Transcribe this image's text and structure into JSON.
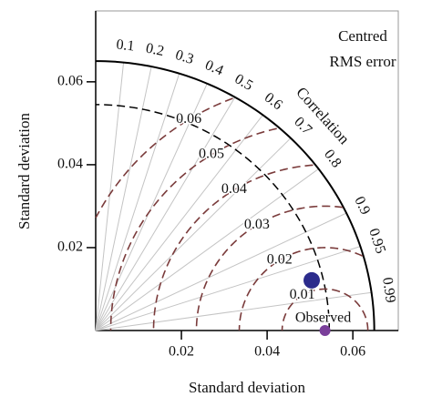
{
  "chart_data": {
    "type": "taylor",
    "xlabel": "Standard deviation",
    "ylabel": "Standard deviation",
    "xlim": [
      0,
      0.0706
    ],
    "ylim": [
      0,
      0.0771
    ],
    "xticks": [
      0.02,
      0.04,
      0.06
    ],
    "yticks": [
      0.02,
      0.04,
      0.06
    ],
    "std_max": 0.065,
    "std_arcs": [
      0.0545
    ],
    "correlations": [
      0.1,
      0.2,
      0.3,
      0.4,
      0.5,
      0.6,
      0.7,
      0.8,
      0.9,
      0.95,
      0.99
    ],
    "correlation_label": "Correlation",
    "rms_levels": [
      0.01,
      0.02,
      0.03,
      0.04,
      0.05,
      0.06
    ],
    "rms_title": [
      "Centred",
      "RMS error"
    ],
    "observed": {
      "name": "Observed",
      "x": 0.0535,
      "y": 0,
      "color": "#7a3f9a"
    },
    "model": {
      "x": 0.0504,
      "y": 0.0121,
      "color": "#2b2b8c"
    },
    "rms_color": "#7a3b3b",
    "line_color": "#c4c4c4"
  }
}
